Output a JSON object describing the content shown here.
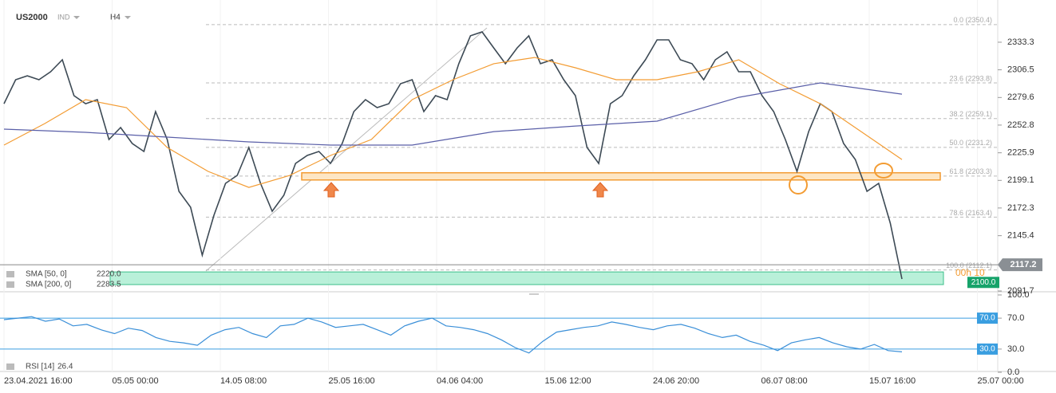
{
  "header": {
    "symbol": "US2000",
    "market": "IND",
    "interval": "H4"
  },
  "time_axis": [
    "23.04.2021 16:00",
    "05.05 00:00",
    "14.05 08:00",
    "25.05 16:00",
    "04.06 04:00",
    "15.06 12:00",
    "24.06 20:00",
    "06.07 08:00",
    "15.07 16:00",
    "25.07 00:00"
  ],
  "chart_data": [
    {
      "type": "line",
      "series": [
        {
          "color": "#3d4a55",
          "values": [
            2273.6,
            2296.9,
            2300.7,
            2296.9,
            2304.6,
            2316.2,
            2281.4,
            2273.6,
            2277.5,
            2238.8,
            2250.4,
            2234.9,
            2227.2,
            2265.9,
            2238.8,
            2188.5,
            2173.0,
            2126.5,
            2165.2,
            2196.2,
            2204.0,
            2231.1,
            2196.2,
            2169.1,
            2184.6,
            2215.6,
            2223.3,
            2227.2,
            2215.6,
            2234.9,
            2265.9,
            2277.5,
            2269.8,
            2273.6,
            2293.0,
            2296.9,
            2265.9,
            2281.4,
            2277.5,
            2312.4,
            2339.5,
            2343.3,
            2327.8,
            2312.4,
            2327.8,
            2339.5,
            2312.4,
            2316.2,
            2296.9,
            2281.4,
            2231.1,
            2215.6,
            2273.6,
            2281.4,
            2300.7,
            2316.2,
            2335.6,
            2335.6,
            2316.2,
            2312.4,
            2296.9,
            2316.2,
            2324.0,
            2304.6,
            2304.6,
            2281.4,
            2265.9,
            2238.8,
            2207.8,
            2246.5,
            2273.6,
            2265.9,
            2234.9,
            2219.4,
            2188.5,
            2196.2,
            2157.5,
            2103.3
          ]
        },
        {
          "name": "SMA [50, 0]",
          "last_value": {
            "value": 2220,
            "label": "2220.0"
          },
          "color": "#f39c33",
          "values": [
            2233.4,
            2254.3,
            2277.5,
            2269.8,
            2231.1,
            2207.8,
            2192.3,
            2203.9,
            2223.3,
            2238.8,
            2277.5,
            2296.9,
            2312.4,
            2318.5,
            2308.5,
            2296.9,
            2296.9,
            2304.6,
            2316.2,
            2293.0,
            2273.6,
            2246.5,
            2219.4
          ]
        },
        {
          "name": "SMA [200, 0]",
          "last_value": 2283.5,
          "color": "#5a5fa8",
          "values": [
            2248.9,
            2245.8,
            2241.1,
            2236.5,
            2233.4,
            2233.4,
            2246.5,
            2251.9,
            2256.6,
            2279.8,
            2293.8,
            2282.9
          ]
        }
      ],
      "ylim": [
        2091.7,
        2374.3
      ],
      "yticks": [
        2333.3,
        2306.5,
        2279.6,
        2252.8,
        2225.9,
        2199.1,
        2172.3,
        2145.4,
        2091.7
      ],
      "fib_levels": [
        {
          "value": 2350.4,
          "label": "0.0 (2350.4)"
        },
        {
          "value": 2293.8,
          "label": "23.6 (2293.8)"
        },
        {
          "value": 2259.1,
          "label": "38.2 (2259.1)"
        },
        {
          "value": 2231.2,
          "label": "50.0 (2231.2)"
        },
        {
          "value": 2203.3,
          "label": "61.8 (2203.3)"
        },
        {
          "value": 2163.4,
          "label": "78.6 (2163.4)"
        },
        {
          "value": 2112.1,
          "label": "100.0 (2112.1)"
        }
      ],
      "support_band": [
        2199.5,
        2206.5
      ],
      "demand_zone": [
        2097.9,
        2110.2
      ],
      "last_price": 2117.2,
      "zone_price": {
        "value": 2100,
        "label": "2100.0"
      },
      "countdown": "00h 10"
    },
    {
      "type": "line",
      "series": [
        {
          "name": "RSI [14]",
          "last_value": 26.4,
          "color": "#3a8fd8",
          "values": [
            68,
            70,
            72,
            66,
            69,
            60,
            62,
            55,
            50,
            57,
            54,
            45,
            40,
            38,
            35,
            48,
            55,
            58,
            50,
            45,
            60,
            62,
            70,
            65,
            58,
            60,
            62,
            55,
            48,
            60,
            66,
            70,
            60,
            58,
            55,
            50,
            42,
            32,
            25,
            40,
            52,
            55,
            58,
            60,
            65,
            62,
            58,
            55,
            60,
            62,
            57,
            50,
            45,
            48,
            40,
            35,
            28,
            38,
            42,
            45,
            38,
            33,
            30,
            36,
            28,
            26.4
          ]
        }
      ],
      "ylim": [
        0,
        100
      ],
      "yticks": [
        {
          "value": 100,
          "label": "100.0"
        },
        {
          "value": 70,
          "label": "70.0"
        },
        {
          "value": 30,
          "label": "30.0"
        },
        {
          "value": 0,
          "label": "0.0"
        }
      ],
      "levels": [
        {
          "value": 70,
          "label": "70.0"
        },
        {
          "value": 30,
          "label": "30.0"
        }
      ]
    }
  ]
}
